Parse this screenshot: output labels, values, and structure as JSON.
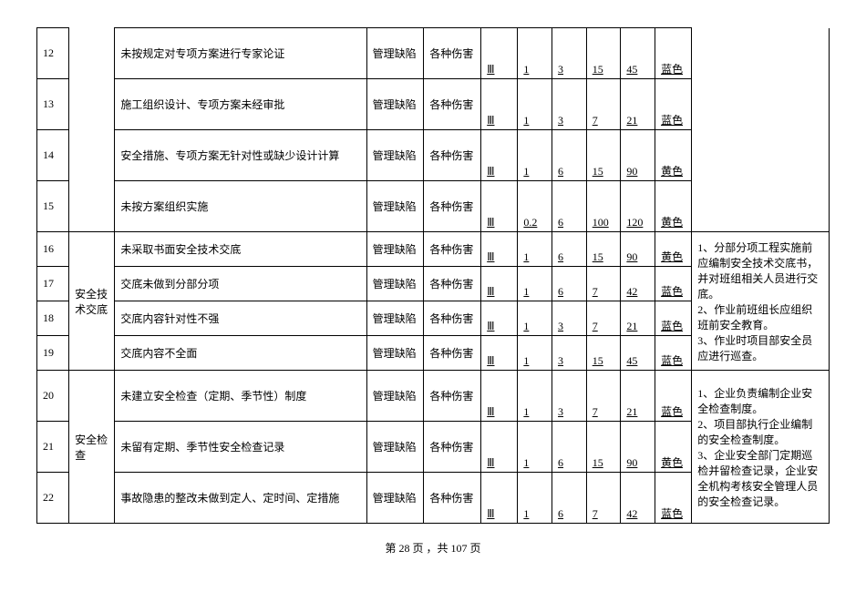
{
  "rows": [
    {
      "idx": "12",
      "desc": "未按规定对专项方案进行专家论证",
      "type": "管理缺陷",
      "harm": "各种伤害",
      "lvl": "Ⅲ",
      "n1": "1",
      "n2": "3",
      "n3": "15",
      "n4": "45",
      "color": "蓝色"
    },
    {
      "idx": "13",
      "desc": "施工组织设计、专项方案未经审批",
      "type": "管理缺陷",
      "harm": "各种伤害",
      "lvl": "Ⅲ",
      "n1": "1",
      "n2": "3",
      "n3": "7",
      "n4": "21",
      "color": "蓝色"
    },
    {
      "idx": "14",
      "desc": "安全措施、专项方案无针对性或缺少设计计算",
      "type": "管理缺陷",
      "harm": "各种伤害",
      "lvl": "Ⅲ",
      "n1": "1",
      "n2": "6",
      "n3": "15",
      "n4": "90",
      "color": "黄色"
    },
    {
      "idx": "15",
      "desc": "未按方案组织实施",
      "type": "管理缺陷",
      "harm": "各种伤害",
      "lvl": "Ⅲ",
      "n1": "0.2",
      "n2": "6",
      "n3": "100",
      "n4": "120",
      "color": "黄色"
    },
    {
      "idx": "16",
      "desc": "未采取书面安全技术交底",
      "type": "管理缺陷",
      "harm": "各种伤害",
      "lvl": "Ⅲ",
      "n1": "1",
      "n2": "6",
      "n3": "15",
      "n4": "90",
      "color": "黄色"
    },
    {
      "idx": "17",
      "desc": "交底未做到分部分项",
      "type": "管理缺陷",
      "harm": "各种伤害",
      "lvl": "Ⅲ",
      "n1": "1",
      "n2": "6",
      "n3": "7",
      "n4": "42",
      "color": "蓝色"
    },
    {
      "idx": "18",
      "desc": "交底内容针对性不强",
      "type": "管理缺陷",
      "harm": "各种伤害",
      "lvl": "Ⅲ",
      "n1": "1",
      "n2": "3",
      "n3": "7",
      "n4": "21",
      "color": "蓝色"
    },
    {
      "idx": "19",
      "desc": "交底内容不全面",
      "type": "管理缺陷",
      "harm": "各种伤害",
      "lvl": "Ⅲ",
      "n1": "1",
      "n2": "3",
      "n3": "15",
      "n4": "45",
      "color": "蓝色"
    },
    {
      "idx": "20",
      "desc": "未建立安全检查（定期、季节性）制度",
      "type": "管理缺陷",
      "harm": "各种伤害",
      "lvl": "Ⅲ",
      "n1": "1",
      "n2": "3",
      "n3": "7",
      "n4": "21",
      "color": "蓝色"
    },
    {
      "idx": "21",
      "desc": "未留有定期、季节性安全检查记录",
      "type": "管理缺陷",
      "harm": "各种伤害",
      "lvl": "Ⅲ",
      "n1": "1",
      "n2": "6",
      "n3": "15",
      "n4": "90",
      "color": "黄色"
    },
    {
      "idx": "22",
      "desc": "事故隐患的整改未做到定人、定时间、定措施",
      "type": "管理缺陷",
      "harm": "各种伤害",
      "lvl": "Ⅲ",
      "n1": "1",
      "n2": "6",
      "n3": "7",
      "n4": "42",
      "color": "蓝色"
    }
  ],
  "cat1": "安全技术交底",
  "cat2": "安全检查",
  "note1": "1、分部分项工程实施前应编制安全技术交底书，并对班组相关人员进行交底。\n2、作业前班组长应组织班前安全教育。\n3、作业时项目部安全员应进行巡查。",
  "note2": "1、企业负责编制企业安全检查制度。\n2、项目部执行企业编制的安全检查制度。\n3、企业安全部门定期巡检并留检查记录，企业安全机构考核安全管理人员的安全检查记录。",
  "footer": "第 28 页 ，共 107 页"
}
